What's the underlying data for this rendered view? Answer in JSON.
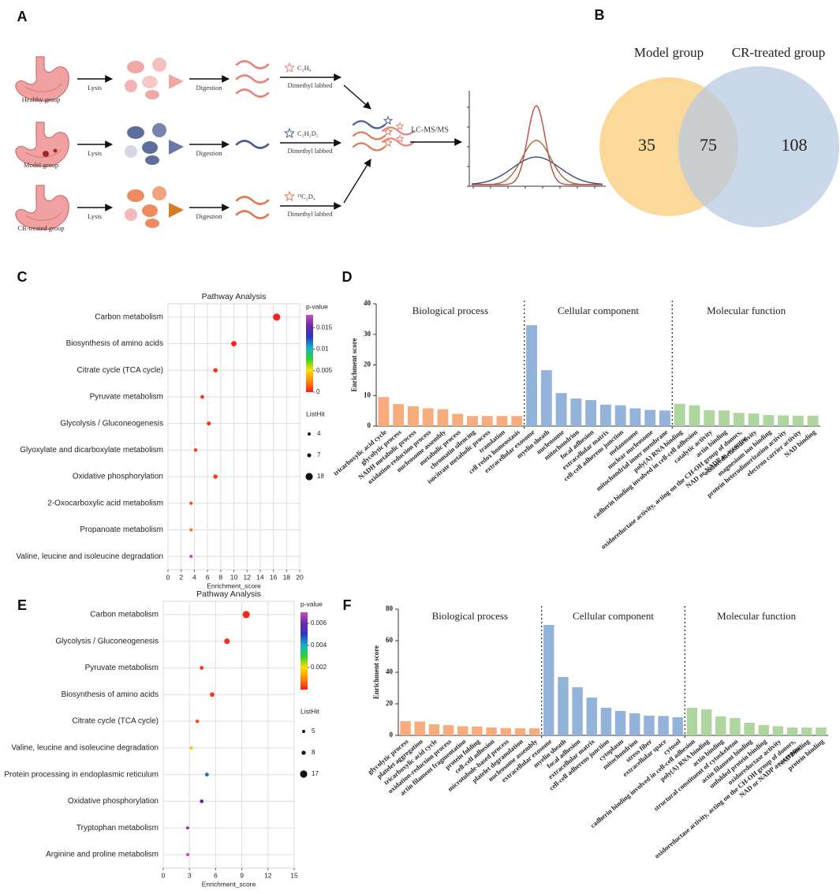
{
  "diagram": {
    "panel": "A",
    "rows": [
      {
        "group": "Healthy group",
        "lysis": "Lysis",
        "digestion": "Digestion",
        "reagent": "C₂H₄",
        "labeling": "Dimethyl labbed"
      },
      {
        "group": "Model group",
        "lysis": "Lysis",
        "digestion": "Digestion",
        "reagent": "C₂H₂D₂",
        "labeling": "Dimethyl labbed"
      },
      {
        "group": "CR-treated group",
        "lysis": "Lysis",
        "digestion": "Digestion",
        "reagent": "¹³C₂D₄",
        "labeling": "Dimethyl labbed"
      }
    ],
    "analysis": "LC-MS/MS"
  },
  "chart_data": [
    {
      "type": "venn",
      "panel": "B",
      "sets": [
        {
          "name": "Model group",
          "color": "#fbd99a"
        },
        {
          "name": "CR-treated group",
          "color": "#b7c9e2"
        }
      ],
      "only": [
        35,
        108
      ],
      "both": 75
    },
    {
      "type": "dot",
      "panel": "C",
      "title": "Pathway Analysis",
      "xlabel": "Enrichment_score",
      "categories": [
        "Carbon metabolism",
        "Biosynthesis of amino acids",
        "Citrate cycle (TCA cycle)",
        "Pyruvate metabolism",
        "Glycolysis / Gluconeogenesis",
        "Glyoxylate and dicarboxylate metabolism",
        "Oxidative phosphorylation",
        "2-Oxocarboxylic acid metabolism",
        "Propanoate metabolism",
        "Valine, leucine and isoleucine degradation"
      ],
      "values": [
        16.5,
        10,
        7.2,
        5.2,
        6.2,
        4.2,
        7.2,
        3.5,
        3.5,
        3.5
      ],
      "pvalues": [
        0.0001,
        0.0002,
        0.0003,
        0.0004,
        0.0004,
        0.0006,
        0.0005,
        0.001,
        0.002,
        0.018
      ],
      "listhits": [
        18,
        12,
        8,
        6,
        7,
        5,
        8,
        4,
        4,
        4
      ],
      "xlim": [
        0,
        20
      ],
      "xticks": [
        0,
        2,
        4,
        6,
        8,
        10,
        12,
        14,
        16,
        18,
        20
      ],
      "color_label": "p-value",
      "clim": [
        0,
        0.018
      ],
      "cticks": [
        0,
        0.005,
        0.01,
        0.015
      ],
      "colorscale": [
        "#ff1f1f",
        "#ff8a00",
        "#ffe000",
        "#2fd12a",
        "#12b5c8",
        "#2c37c4",
        "#6a2aa8",
        "#cc49c6"
      ],
      "size_label": "ListHit",
      "size_legend": [
        4,
        7,
        18
      ],
      "grid": true
    },
    {
      "type": "bar",
      "panel": "D",
      "ylabel": "Enrichment score",
      "ylim": [
        0,
        40
      ],
      "yticks": [
        0,
        10,
        20,
        30,
        40
      ],
      "groups": [
        {
          "name": "Biological process",
          "color": "#f7ac7e",
          "label_color": "#f29a62",
          "categories": [
            "tricarboxylic acid cycle",
            "glycolytic process",
            "NADH metabolic process",
            "oxidation-reduction process",
            "nucleosome assembly",
            "metabolic process",
            "chromatin silencing",
            "isocitrate metabolic process",
            "translation",
            "cell redox homeostasis"
          ],
          "values": [
            9.5,
            7.2,
            6.5,
            5.8,
            5.5,
            4,
            3.3,
            3.3,
            3.3,
            3.3
          ]
        },
        {
          "name": "Cellular component",
          "color": "#93b3da",
          "label_color": "#6e95c8",
          "categories": [
            "extracellular exosome",
            "myelin sheath",
            "nucleosome",
            "mitochondrion",
            "focal adhesion",
            "extracellular matrix",
            "cell-cell adherens junction",
            "melanosome",
            "nuclear nucleosome",
            "mitochondrial inner membrane"
          ],
          "values": [
            33,
            18.3,
            10.8,
            9,
            8.5,
            7,
            6.8,
            5.8,
            5.3,
            5.1
          ]
        },
        {
          "name": "Molecular function",
          "color": "#aed69e",
          "label_color": "#7cc266",
          "categories": [
            "poly(A) RNA binding",
            "cadherin binding involved in cell-cell adhesion",
            "catalytic activity",
            "actin binding",
            "oxidoreductase activity, acting on the CH-OH group of donors, NAD or NADP as acceptor",
            "oxidoreductase activity",
            "magnesium ion binding",
            "protein heterodimerization activity",
            "electron carrier activity",
            "NAD binding"
          ],
          "values": [
            7.3,
            6.8,
            5.2,
            5.1,
            4.3,
            4.1,
            3.6,
            3.5,
            3.4,
            3.4
          ]
        }
      ]
    },
    {
      "type": "dot",
      "panel": "E",
      "title": "Pathway Analysis",
      "xlabel": "Enrichment_score",
      "categories": [
        "Carbon metabolism",
        "Glycolysis / Gluconeogenesis",
        "Pyruvate metabolism",
        "Biosynthesis of amino acids",
        "Citrate cycle (TCA cycle)",
        "Valine, leucine and isoleucine degradation",
        "Protein processing in endoplasmic reticulum",
        "Oxidative phosphorylation",
        "Tryptophan metabolism",
        "Arginine and proline metabolism"
      ],
      "values": [
        9.5,
        7.3,
        4.4,
        5.6,
        3.9,
        3.2,
        5,
        4.4,
        2.8,
        2.8
      ],
      "pvalues": [
        5e-05,
        0.0001,
        0.0002,
        0.0002,
        0.0003,
        0.0016,
        0.0046,
        0.006,
        0.0064,
        0.007
      ],
      "listhits": [
        17,
        12,
        7,
        9,
        6,
        5,
        7,
        7,
        5,
        5
      ],
      "xlim": [
        0,
        15
      ],
      "xticks": [
        0,
        3,
        6,
        9,
        12,
        15
      ],
      "color_label": "p-value",
      "clim": [
        0,
        0.007
      ],
      "cticks": [
        0.002,
        0.004,
        0.006
      ],
      "colorscale": [
        "#ff1f1f",
        "#ff8a00",
        "#ffe000",
        "#2fd12a",
        "#12b5c8",
        "#2c37c4",
        "#6a2aa8",
        "#cc49c6"
      ],
      "size_label": "ListHit",
      "size_legend": [
        5,
        8,
        17
      ],
      "grid": true
    },
    {
      "type": "bar",
      "panel": "F",
      "ylabel": "Enrichment score",
      "ylim": [
        0,
        80
      ],
      "yticks": [
        0,
        20,
        40,
        60,
        80
      ],
      "groups": [
        {
          "name": "Biological process",
          "color": "#f7ac7e",
          "label_color": "#f29a62",
          "categories": [
            "glycolytic process",
            "platelet aggregation",
            "tricarboxylic acid cycle",
            "oxidation-reduction process",
            "actin filament fragmentation",
            "protein folding",
            "cell-cell adhesion",
            "microtubule-based process",
            "platelet degranulation",
            "nucleosome assembly"
          ],
          "values": [
            9,
            8.8,
            7,
            6.5,
            5.8,
            5.6,
            5,
            4.7,
            4.5,
            4.5
          ]
        },
        {
          "name": "Cellular component",
          "color": "#93b3da",
          "label_color": "#6e95c8",
          "categories": [
            "extracellular exosome",
            "myelin sheath",
            "focal adhesion",
            "extracellular matrix",
            "cell-cell adherens junction",
            "cytoplasm",
            "mitochondrion",
            "stress fiber",
            "extracellular space",
            "cytosol"
          ],
          "values": [
            70,
            37,
            30.5,
            24,
            17.5,
            15.5,
            14,
            12.5,
            12.3,
            11.5
          ]
        },
        {
          "name": "Molecular function",
          "color": "#aed69e",
          "label_color": "#7cc266",
          "categories": [
            "cadherin binding involved in cell-cell adhesion",
            "poly(A) RNA binding",
            "actin binding",
            "structural constituent of cytoskeleton",
            "actin filament binding",
            "unfolded protein binding",
            "oxidoreductase activity",
            "oxidoreductase activity, acting on the CH-OH group of donors, NAD or NADP as acceptor",
            "NAD binding",
            "protein binding"
          ],
          "values": [
            17.5,
            16.5,
            12,
            11,
            8,
            6.5,
            5.8,
            5,
            5,
            5
          ]
        }
      ]
    }
  ]
}
